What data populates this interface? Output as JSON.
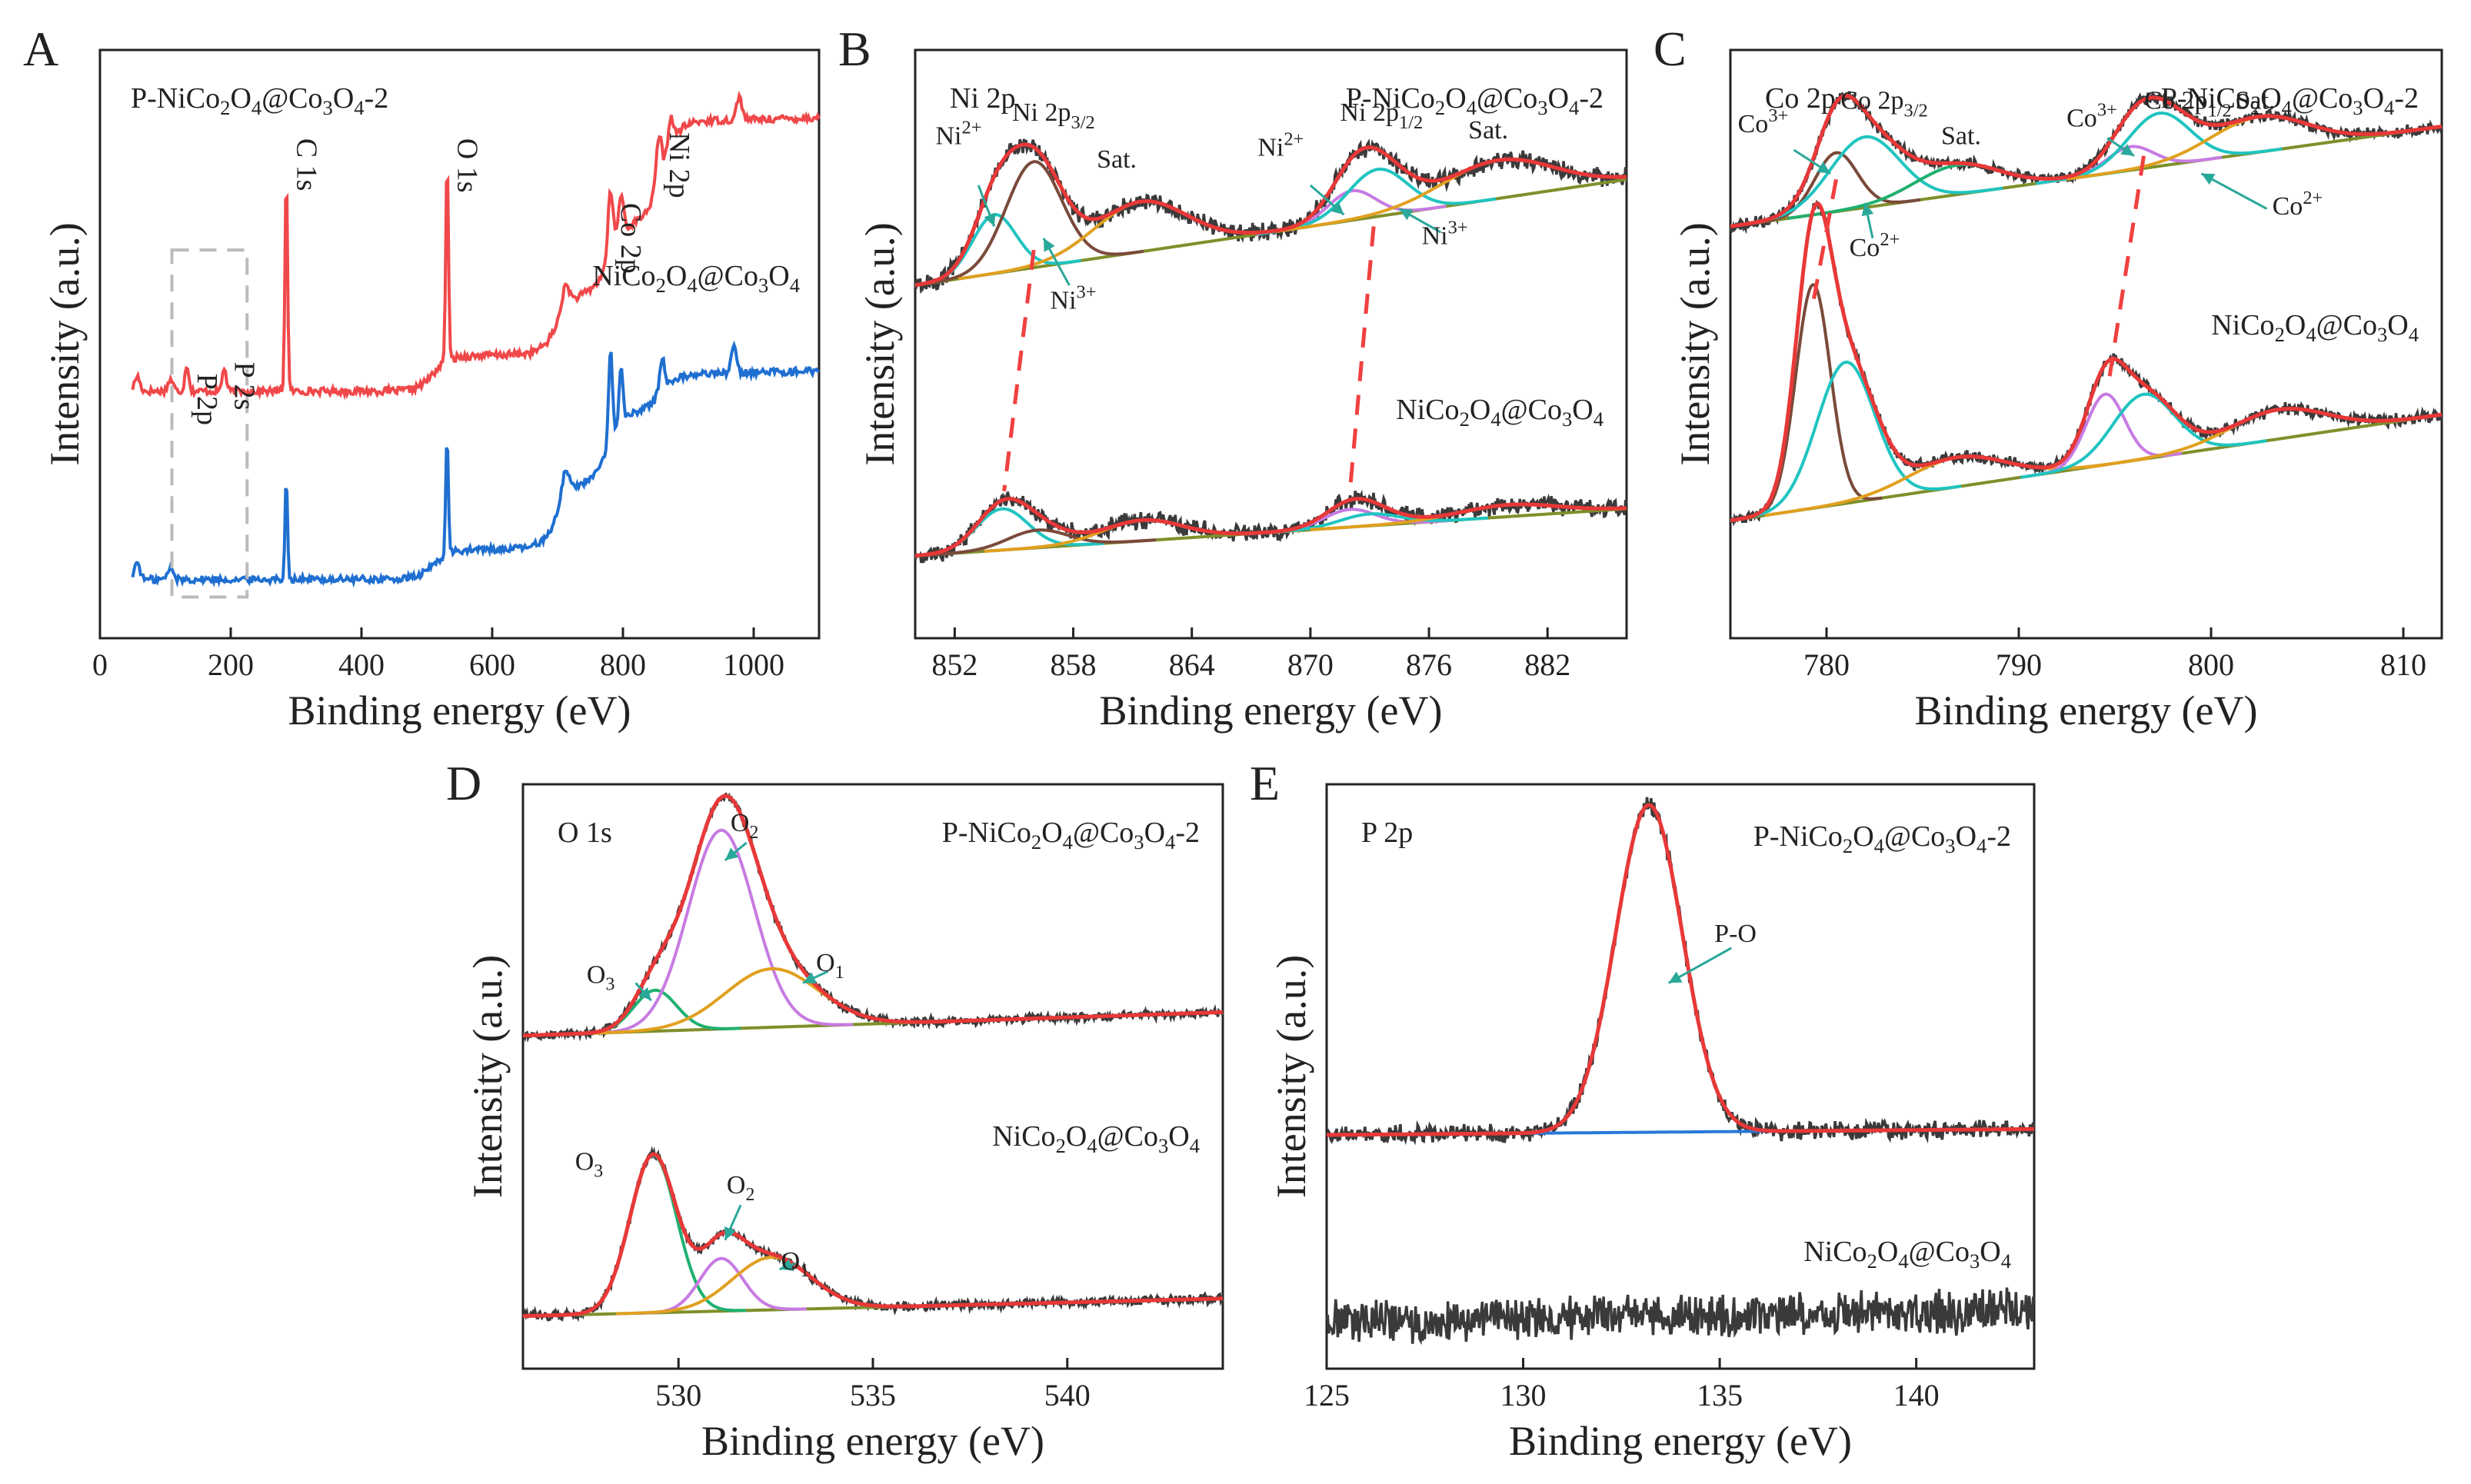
{
  "figure": {
    "sub_small": "a.u.",
    "colors": {
      "sample_p": "#f0484a",
      "sample_ref": "#1f6fd1",
      "raw": "#3a3a3a",
      "fit_envelope": "#e83838",
      "background": "#7f8f2a",
      "cyan": "#20c4c0",
      "violet": "#c77be2",
      "brown": "#7a4a3a",
      "orange": "#e0a020",
      "green": "#20b070",
      "blue": "#2878d8",
      "dash": "#f04040",
      "box": "#bbbbbb"
    }
  },
  "chart_data": [
    {
      "id": "A",
      "type": "line",
      "panel_letter": "A",
      "title": "",
      "xlabel": "Binding energy (eV)",
      "ylabel": "Intensity (a.u.)",
      "xlim": [
        0,
        1100
      ],
      "xticks": [
        0,
        200,
        400,
        600,
        800,
        1000
      ],
      "ylim": [
        0,
        1
      ],
      "sample_labels": [
        "P-NiCo2O4@Co3O4-2",
        "NiCo2O4@Co3O4"
      ],
      "series": [
        {
          "name": "P-NiCo2O4@Co3O4-2",
          "color": "#f0484a",
          "baseline": 0.42,
          "steps": [
            [
              510,
              0.06
            ],
            [
              700,
              0.1
            ],
            [
              780,
              0.12
            ],
            [
              860,
              0.17
            ]
          ],
          "peaks": [
            [
              57,
              0.025,
              4
            ],
            [
              108,
              0.02,
              4
            ],
            [
              133,
              0.045,
              3
            ],
            [
              190,
              0.04,
              3
            ],
            [
              285,
              0.37,
              2
            ],
            [
              531,
              0.35,
              2
            ],
            [
              712,
              0.04,
              6
            ],
            [
              781,
              0.11,
              4
            ],
            [
              797,
              0.07,
              4
            ],
            [
              855,
              0.08,
              4
            ],
            [
              873,
              0.05,
              4
            ],
            [
              978,
              0.04,
              4
            ]
          ],
          "noise": 0.006
        },
        {
          "name": "NiCo2O4@Co3O4",
          "color": "#1f6fd1",
          "baseline": 0.1,
          "steps": [
            [
              510,
              0.05
            ],
            [
              700,
              0.11
            ],
            [
              780,
              0.12
            ],
            [
              860,
              0.06
            ]
          ],
          "peaks": [
            [
              57,
              0.03,
              4
            ],
            [
              108,
              0.02,
              4
            ],
            [
              285,
              0.17,
              2
            ],
            [
              531,
              0.2,
              2
            ],
            [
              712,
              0.05,
              6
            ],
            [
              781,
              0.16,
              3
            ],
            [
              797,
              0.1,
              3
            ],
            [
              860,
              0.06,
              4
            ],
            [
              970,
              0.05,
              4
            ]
          ],
          "noise": 0.006
        }
      ],
      "annotations": [
        {
          "text": "C 1s",
          "x": 285,
          "y": 0.85,
          "rotate": true
        },
        {
          "text": "O 1s",
          "x": 531,
          "y": 0.85,
          "rotate": true
        },
        {
          "text": "Co 2p",
          "x": 781,
          "y": 0.74,
          "rotate": true
        },
        {
          "text": "Ni 2p",
          "x": 855,
          "y": 0.86,
          "rotate": true
        },
        {
          "text": "P 2s",
          "x": 190,
          "y": 0.47,
          "rotate": true
        },
        {
          "text": "P 2p",
          "x": 133,
          "y": 0.45,
          "rotate": true
        }
      ],
      "box": {
        "x0": 110,
        "x1": 225,
        "y0": 0.07,
        "y1": 0.66
      }
    },
    {
      "id": "B",
      "type": "line",
      "panel_letter": "B",
      "title": "Ni 2p",
      "xlabel": "Binding energy (eV)",
      "ylabel": "Intensity (a.u.)",
      "xlim": [
        850,
        886
      ],
      "xticks": [
        852,
        858,
        864,
        870,
        876,
        882
      ],
      "ylim": [
        0,
        1
      ],
      "sample_labels": [
        "P-NiCo2O4@Co3O4-2",
        "NiCo2O4@Co3O4"
      ],
      "spectra": [
        {
          "name": "P-NiCo2O4@Co3O4-2",
          "bg": [
            [
              850,
              0.6
            ],
            [
              886,
              0.78
            ]
          ],
          "noise": 0.012,
          "components": [
            {
              "name": "Ni2+",
              "color": "#20c4c0",
              "center": 854.0,
              "amp": 0.1,
              "sigma": 1.1
            },
            {
              "name": "Ni3+",
              "color": "#7a4a3a",
              "center": 856.0,
              "amp": 0.18,
              "sigma": 1.4
            },
            {
              "name": "Sat.",
              "color": "#e0a020",
              "center": 861.4,
              "amp": 0.085,
              "sigma": 2.3
            },
            {
              "name": "Ni2+",
              "color": "#c77be2",
              "center": 872.1,
              "amp": 0.05,
              "sigma": 1.2
            },
            {
              "name": "Ni3+",
              "color": "#20c4c0",
              "center": 873.4,
              "amp": 0.08,
              "sigma": 1.5
            },
            {
              "name": "Sat.",
              "color": "#e0a020",
              "center": 879.5,
              "amp": 0.065,
              "sigma": 2.8
            }
          ]
        },
        {
          "name": "NiCo2O4@Co3O4",
          "bg": [
            [
              850,
              0.14
            ],
            [
              886,
              0.22
            ]
          ],
          "noise": 0.012,
          "components": [
            {
              "name": "Ni2+",
              "color": "#20c4c0",
              "center": 854.4,
              "amp": 0.07,
              "sigma": 1.3
            },
            {
              "name": "Ni3+",
              "color": "#7a4a3a",
              "center": 856.2,
              "amp": 0.03,
              "sigma": 1.5
            },
            {
              "name": "Sat.",
              "color": "#e0a020",
              "center": 861.5,
              "amp": 0.035,
              "sigma": 2.0
            },
            {
              "name": "Ni2+",
              "color": "#c77be2",
              "center": 872.0,
              "amp": 0.03,
              "sigma": 1.3
            },
            {
              "name": "Ni3+",
              "color": "#20c4c0",
              "center": 873.0,
              "amp": 0.02,
              "sigma": 1.5
            },
            {
              "name": "Sat.",
              "color": "#e0a020",
              "center": 880.0,
              "amp": 0.02,
              "sigma": 2.5
            }
          ]
        }
      ],
      "dashed_links": [
        {
          "x0": 856.0,
          "y0": 0.66,
          "x1": 854.5,
          "y1": 0.25
        },
        {
          "x0": 873.2,
          "y0": 0.7,
          "x1": 872.0,
          "y1": 0.25
        }
      ],
      "annotations": [
        {
          "text": "Ni2+",
          "x": 852.2,
          "y": 0.84
        },
        {
          "text": "Ni 2p3/2",
          "x": 857.0,
          "y": 0.88
        },
        {
          "text": "Sat.",
          "x": 860.2,
          "y": 0.8
        },
        {
          "text": "Ni3+",
          "x": 858.0,
          "y": 0.56
        },
        {
          "text": "Ni2+",
          "x": 868.5,
          "y": 0.82
        },
        {
          "text": "Ni 2p1/2",
          "x": 873.6,
          "y": 0.88
        },
        {
          "text": "Sat.",
          "x": 879.0,
          "y": 0.85
        },
        {
          "text": "Ni3+",
          "x": 876.8,
          "y": 0.67
        }
      ],
      "arrows": [
        {
          "x0": 853.2,
          "y0": 0.77,
          "x1": 854.0,
          "y1": 0.7
        },
        {
          "x0": 857.8,
          "y0": 0.6,
          "x1": 856.5,
          "y1": 0.68
        },
        {
          "x0": 870.0,
          "y0": 0.77,
          "x1": 871.7,
          "y1": 0.72
        },
        {
          "x0": 876.6,
          "y0": 0.69,
          "x1": 874.5,
          "y1": 0.73
        }
      ]
    },
    {
      "id": "C",
      "type": "line",
      "panel_letter": "C",
      "title": "Co 2p",
      "xlabel": "Binding energy (eV)",
      "ylabel": "Intensity (a.u.)",
      "xlim": [
        775,
        812
      ],
      "xticks": [
        780,
        790,
        800,
        810
      ],
      "ylim": [
        0,
        1
      ],
      "sample_labels": [
        "P-NiCo2O4@Co3O4-2",
        "NiCo2O4@Co3O4"
      ],
      "spectra": [
        {
          "name": "P-NiCo2O4@Co3O4-2",
          "bg": [
            [
              775,
              0.7
            ],
            [
              812,
              0.87
            ]
          ],
          "noise": 0.008,
          "components": [
            {
              "name": "Co3+",
              "color": "#7a4a3a",
              "center": 780.5,
              "amp": 0.1,
              "sigma": 1.1
            },
            {
              "name": "Co2+",
              "color": "#20c4c0",
              "center": 782.0,
              "amp": 0.12,
              "sigma": 1.8
            },
            {
              "name": "Sat.",
              "color": "#20b070",
              "center": 786.8,
              "amp": 0.05,
              "sigma": 2.2
            },
            {
              "name": "Co3+",
              "color": "#c77be2",
              "center": 795.8,
              "amp": 0.04,
              "sigma": 1.2
            },
            {
              "name": "Co2+",
              "color": "#20c4c0",
              "center": 797.3,
              "amp": 0.09,
              "sigma": 1.6
            },
            {
              "name": "Sat.",
              "color": "#e0a020",
              "center": 802.5,
              "amp": 0.06,
              "sigma": 2.5
            }
          ]
        },
        {
          "name": "NiCo2O4@Co3O4",
          "bg": [
            [
              775,
              0.2
            ],
            [
              812,
              0.38
            ]
          ],
          "noise": 0.008,
          "components": [
            {
              "name": "Co3+",
              "color": "#7a4a3a",
              "center": 779.3,
              "amp": 0.38,
              "sigma": 0.9
            },
            {
              "name": "Co2+",
              "color": "#20c4c0",
              "center": 781.0,
              "amp": 0.24,
              "sigma": 1.5
            },
            {
              "name": "Sat.",
              "color": "#e0a020",
              "center": 786.8,
              "amp": 0.05,
              "sigma": 2.5
            },
            {
              "name": "Co3+",
              "color": "#c77be2",
              "center": 794.5,
              "amp": 0.12,
              "sigma": 1.0
            },
            {
              "name": "Co2+",
              "color": "#20c4c0",
              "center": 796.5,
              "amp": 0.11,
              "sigma": 1.6
            },
            {
              "name": "Sat.",
              "color": "#e0a020",
              "center": 803.5,
              "amp": 0.05,
              "sigma": 2.5
            }
          ]
        }
      ],
      "dashed_links": [
        {
          "x0": 780.5,
          "y0": 0.78,
          "x1": 779.3,
          "y1": 0.57
        },
        {
          "x0": 796.5,
          "y0": 0.82,
          "x1": 794.7,
          "y1": 0.44
        }
      ],
      "annotations": [
        {
          "text": "Co3+",
          "x": 776.7,
          "y": 0.86
        },
        {
          "text": "Co 2p3/2",
          "x": 783.0,
          "y": 0.9
        },
        {
          "text": "Sat.",
          "x": 787.0,
          "y": 0.84
        },
        {
          "text": "Co2+",
          "x": 782.5,
          "y": 0.65
        },
        {
          "text": "Co3+",
          "x": 793.8,
          "y": 0.87
        },
        {
          "text": "Co 2p1/2",
          "x": 798.8,
          "y": 0.9
        },
        {
          "text": "Sat.",
          "x": 802.3,
          "y": 0.9
        },
        {
          "text": "Co2+",
          "x": 804.5,
          "y": 0.72
        }
      ],
      "arrows": [
        {
          "x0": 778.3,
          "y0": 0.83,
          "x1": 780.2,
          "y1": 0.79
        },
        {
          "x0": 782.4,
          "y0": 0.68,
          "x1": 782.0,
          "y1": 0.74
        },
        {
          "x0": 794.6,
          "y0": 0.85,
          "x1": 796.0,
          "y1": 0.82
        },
        {
          "x0": 802.9,
          "y0": 0.73,
          "x1": 799.5,
          "y1": 0.79
        }
      ]
    },
    {
      "id": "D",
      "type": "line",
      "panel_letter": "D",
      "title": "O 1s",
      "xlabel": "Binding energy (eV)",
      "ylabel": "Intensity (a.u.)",
      "xlim": [
        526,
        544
      ],
      "xticks": [
        530,
        535,
        540
      ],
      "ylim": [
        0,
        1
      ],
      "sample_labels": [
        "P-NiCo2O4@Co3O4-2",
        "NiCo2O4@Co3O4"
      ],
      "spectra": [
        {
          "name": "P-NiCo2O4@Co3O4-2",
          "bg": [
            [
              526,
              0.57
            ],
            [
              544,
              0.61
            ]
          ],
          "noise": 0.006,
          "components": [
            {
              "name": "O3",
              "color": "#20b070",
              "center": 529.4,
              "amp": 0.07,
              "sigma": 0.55
            },
            {
              "name": "O2",
              "color": "#c77be2",
              "center": 531.1,
              "amp": 0.34,
              "sigma": 0.85
            },
            {
              "name": "O1",
              "color": "#e0a020",
              "center": 532.4,
              "amp": 0.1,
              "sigma": 1.2
            }
          ]
        },
        {
          "name": "NiCo2O4@Co3O4",
          "bg": [
            [
              526,
              0.09
            ],
            [
              544,
              0.12
            ]
          ],
          "noise": 0.006,
          "components": [
            {
              "name": "O3",
              "color": "#20b070",
              "center": 529.35,
              "amp": 0.27,
              "sigma": 0.6
            },
            {
              "name": "O2",
              "color": "#c77be2",
              "center": 531.1,
              "amp": 0.09,
              "sigma": 0.55
            },
            {
              "name": "O1",
              "color": "#e0a020",
              "center": 532.4,
              "amp": 0.09,
              "sigma": 1.0
            }
          ]
        }
      ],
      "dashed_links": [],
      "annotations": [
        {
          "text": "O2",
          "x": 531.7,
          "y": 0.92
        },
        {
          "text": "O3",
          "x": 528.0,
          "y": 0.66
        },
        {
          "text": "O1",
          "x": 533.9,
          "y": 0.68
        },
        {
          "text": "O3",
          "x": 527.7,
          "y": 0.34
        },
        {
          "text": "O2",
          "x": 531.6,
          "y": 0.3
        },
        {
          "text": "O1",
          "x": 533.0,
          "y": 0.17
        }
      ],
      "arrows": [
        {
          "x0": 531.75,
          "y0": 0.9,
          "x1": 531.2,
          "y1": 0.87
        },
        {
          "x0": 528.9,
          "y0": 0.66,
          "x1": 529.3,
          "y1": 0.63
        },
        {
          "x0": 533.85,
          "y0": 0.68,
          "x1": 533.2,
          "y1": 0.66
        },
        {
          "x0": 531.6,
          "y0": 0.28,
          "x1": 531.2,
          "y1": 0.22
        },
        {
          "x0": 533.0,
          "y0": 0.18,
          "x1": 532.6,
          "y1": 0.17
        }
      ]
    },
    {
      "id": "E",
      "type": "line",
      "panel_letter": "E",
      "title": "P 2p",
      "xlabel": "Binding energy (eV)",
      "ylabel": "Intensity (a.u.)",
      "xlim": [
        125,
        143
      ],
      "xticks": [
        125,
        130,
        135,
        140
      ],
      "ylim": [
        0,
        1
      ],
      "sample_labels": [
        "P-NiCo2O4@Co3O4-2",
        "NiCo2O4@Co3O4"
      ],
      "spectra": [
        {
          "name": "P-NiCo2O4@Co3O4-2",
          "bg": [
            [
              125,
              0.4
            ],
            [
              143,
              0.41
            ]
          ],
          "bg_color": "#2878d8",
          "noise": 0.012,
          "components": [
            {
              "name": "P-O",
              "color": "#e83838",
              "center": 133.2,
              "amp": 0.56,
              "sigma": 0.85
            }
          ],
          "envelope_color": "#e83838"
        },
        {
          "name": "NiCo2O4@Co3O4",
          "bg": [
            [
              125,
              0.08
            ],
            [
              143,
              0.1
            ]
          ],
          "noise": 0.028,
          "components": [],
          "raw_only": true
        }
      ],
      "dashed_links": [],
      "annotations": [
        {
          "text": "P-O",
          "x": 135.4,
          "y": 0.73
        }
      ],
      "arrows": [
        {
          "x0": 135.3,
          "y0": 0.72,
          "x1": 133.7,
          "y1": 0.66
        }
      ]
    }
  ]
}
